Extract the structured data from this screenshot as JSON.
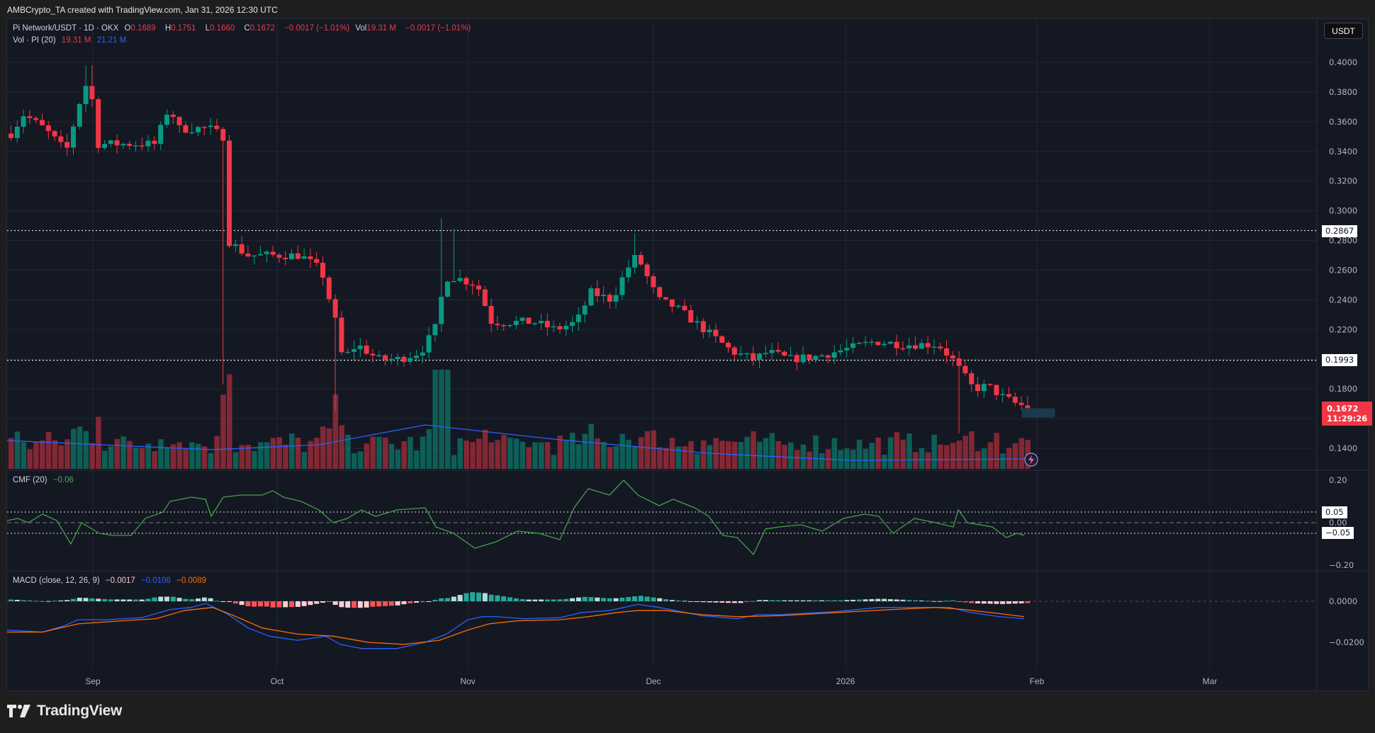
{
  "credit": "AMBCrypto_TA created with TradingView.com, Jan 31, 2026 12:30 UTC",
  "symbol": {
    "title": "Pi Network/USDT · 1D · OKX",
    "open_label": "O",
    "open": "0.1689",
    "high_label": "H",
    "high": "0.1751",
    "low_label": "L",
    "low": "0.1660",
    "close_label": "C",
    "close": "0.1672",
    "change": "−0.0017 (−1.01%)",
    "vol_label": "Vol",
    "vol": "19.31 M",
    "vol_change": "−0.0017 (−1.01%)"
  },
  "volume_legend": {
    "label": "Vol · PI (20)",
    "value": "19.31 M",
    "ma": "21.21 M"
  },
  "cmf_legend": {
    "label": "CMF (20)",
    "value": "−0.06"
  },
  "macd_legend": {
    "label": "MACD (close, 12, 26, 9)",
    "hist": "−0.0017",
    "macd": "−0.0106",
    "signal": "−0.0089"
  },
  "currency_button": "USDT",
  "price_tags": {
    "upper_line": "0.2867",
    "lower_line": "0.1993",
    "last_price": "0.1672",
    "countdown": "11:29:26"
  },
  "cmf_tags": {
    "upper": "0.05",
    "lower": "−0.05"
  },
  "x_axis": [
    "Sep",
    "Oct",
    "Nov",
    "Dec",
    "2026",
    "Feb",
    "Mar"
  ],
  "brand": "TradingView",
  "colors": {
    "up": "#089981",
    "down": "#f23645",
    "ma": "#2962ff",
    "cmf": "#43a047",
    "signal": "#ff6d00",
    "bg": "#141823"
  },
  "chart_data": [
    {
      "type": "candlestick",
      "title": "Pi Network/USDT · 1D · OKX",
      "xlabel": "",
      "ylabel": "USDT",
      "ylim": [
        0.13,
        0.41
      ],
      "y_ticks": [
        "0.4000",
        "0.3800",
        "0.3600",
        "0.3400",
        "0.3200",
        "0.3000",
        "0.2800",
        "0.2600",
        "0.2400",
        "0.2200",
        "0.1800",
        "0.1400"
      ],
      "x_ticks": [
        "Sep",
        "Oct",
        "Nov",
        "Dec",
        "2026",
        "Feb",
        "Mar"
      ],
      "horizontal_lines": [
        0.2867,
        0.1993
      ],
      "key_points": [
        {
          "date": "late Aug",
          "close": 0.35
        },
        {
          "date": "Aug 31",
          "high": 0.398,
          "close": 0.385
        },
        {
          "date": "Sep 20",
          "close": 0.355
        },
        {
          "date": "Sep 22",
          "low": 0.183,
          "close": 0.29
        },
        {
          "date": "Oct 10",
          "low": 0.165,
          "close": 0.2
        },
        {
          "date": "Oct 27",
          "high": 0.295,
          "close": 0.255
        },
        {
          "date": "Nov 27",
          "high": 0.285,
          "close": 0.27
        },
        {
          "date": "Dec 14",
          "close": 0.2
        },
        {
          "date": "Jan 10",
          "close": 0.213
        },
        {
          "date": "Jan 20",
          "low": 0.15,
          "close": 0.185
        },
        {
          "date": "Jan 31",
          "open": 0.1689,
          "high": 0.1751,
          "low": 0.166,
          "close": 0.1672
        }
      ],
      "last": {
        "open": 0.1689,
        "high": 0.1751,
        "low": 0.166,
        "close": 0.1672
      }
    },
    {
      "type": "bar",
      "title": "Vol · PI (20)",
      "latest": "19.31 M",
      "ma": "21.21 M"
    },
    {
      "type": "line",
      "title": "CMF (20)",
      "ylim": [
        -0.22,
        0.22
      ],
      "y_ticks": [
        "0.20",
        "0.00",
        "−0.20"
      ],
      "levels": [
        0.05,
        0.0,
        -0.05
      ],
      "latest": -0.06
    },
    {
      "type": "line",
      "title": "MACD (close, 12, 26, 9)",
      "y_ticks": [
        "0.0000",
        "−0.0200"
      ],
      "series": [
        {
          "name": "Histogram",
          "latest": -0.0017
        },
        {
          "name": "MACD",
          "latest": -0.0106
        },
        {
          "name": "Signal",
          "latest": -0.0089
        }
      ]
    }
  ]
}
